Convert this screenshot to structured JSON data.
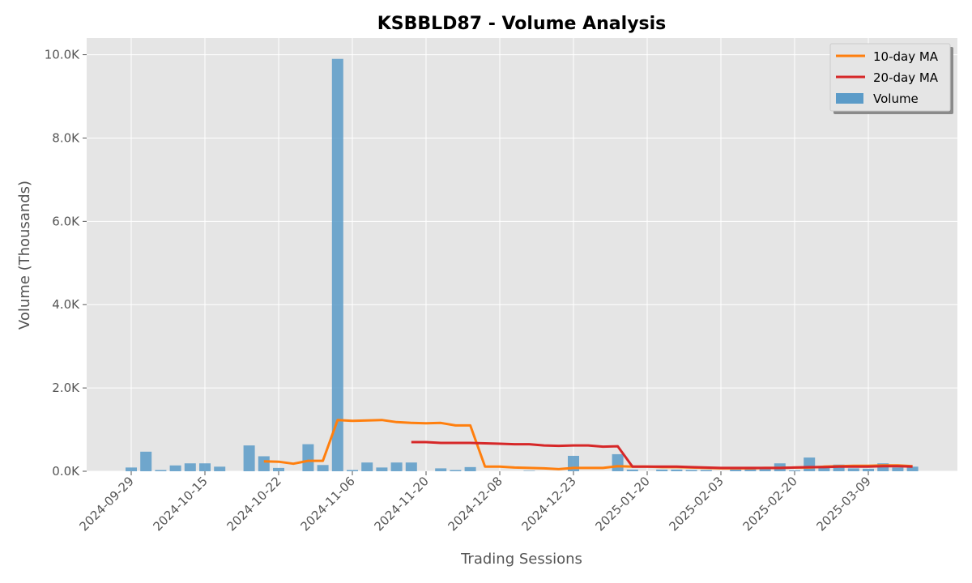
{
  "chart_data": {
    "type": "bar",
    "title": "KSBBLD87 - Volume Analysis",
    "xlabel": "Trading Sessions",
    "ylabel": "Volume (Thousands)",
    "ylim": [
      0,
      10400
    ],
    "y_ticks": [
      0,
      2000,
      4000,
      6000,
      8000,
      10000
    ],
    "y_tick_labels": [
      "0.0K",
      "2.0K",
      "4.0K",
      "6.0K",
      "8.0K",
      "10.0K"
    ],
    "x_tick_labels": [
      {
        "index": 0,
        "label": "2024-09-29"
      },
      {
        "index": 5,
        "label": "2024-10-15"
      },
      {
        "index": 10,
        "label": "2024-10-22"
      },
      {
        "index": 15,
        "label": "2024-11-06"
      },
      {
        "index": 20,
        "label": "2024-11-20"
      },
      {
        "index": 25,
        "label": "2024-12-08"
      },
      {
        "index": 30,
        "label": "2024-12-23"
      },
      {
        "index": 35,
        "label": "2025-01-20"
      },
      {
        "index": 40,
        "label": "2025-02-03"
      },
      {
        "index": 45,
        "label": "2025-02-20"
      },
      {
        "index": 50,
        "label": "2025-03-09"
      }
    ],
    "grid": true,
    "legend_position": "top-right",
    "series": [
      {
        "name": "Volume",
        "kind": "bar",
        "color": "#5B9BC8",
        "values": [
          90,
          470,
          30,
          140,
          190,
          190,
          110,
          0,
          620,
          360,
          80,
          0,
          650,
          150,
          9900,
          30,
          210,
          90,
          210,
          210,
          0,
          70,
          30,
          100,
          0,
          0,
          0,
          10,
          0,
          0,
          370,
          0,
          0,
          410,
          40,
          0,
          40,
          40,
          30,
          30,
          0,
          40,
          60,
          50,
          190,
          20,
          330,
          120,
          160,
          70,
          60,
          190,
          90,
          110
        ]
      },
      {
        "name": "10-day MA",
        "kind": "line",
        "color": "#FF7F0E",
        "values": [
          null,
          null,
          null,
          null,
          null,
          null,
          null,
          null,
          null,
          240,
          230,
          180,
          250,
          250,
          1230,
          1210,
          1220,
          1230,
          1180,
          1160,
          1150,
          1160,
          1100,
          1100,
          110,
          110,
          90,
          80,
          70,
          50,
          80,
          80,
          80,
          120,
          110,
          110,
          100,
          100,
          90,
          80,
          70,
          70,
          70,
          80,
          80,
          90,
          90,
          110,
          120,
          130,
          130,
          140,
          140,
          120
        ]
      },
      {
        "name": "20-day MA",
        "kind": "line",
        "color": "#D62728",
        "values": [
          null,
          null,
          null,
          null,
          null,
          null,
          null,
          null,
          null,
          null,
          null,
          null,
          null,
          null,
          null,
          null,
          null,
          null,
          null,
          700,
          700,
          680,
          680,
          680,
          670,
          660,
          650,
          650,
          620,
          610,
          620,
          620,
          590,
          600,
          110,
          110,
          110,
          110,
          100,
          90,
          80,
          80,
          80,
          80,
          80,
          90,
          100,
          100,
          110,
          110,
          110,
          120,
          120,
          110
        ]
      }
    ]
  }
}
